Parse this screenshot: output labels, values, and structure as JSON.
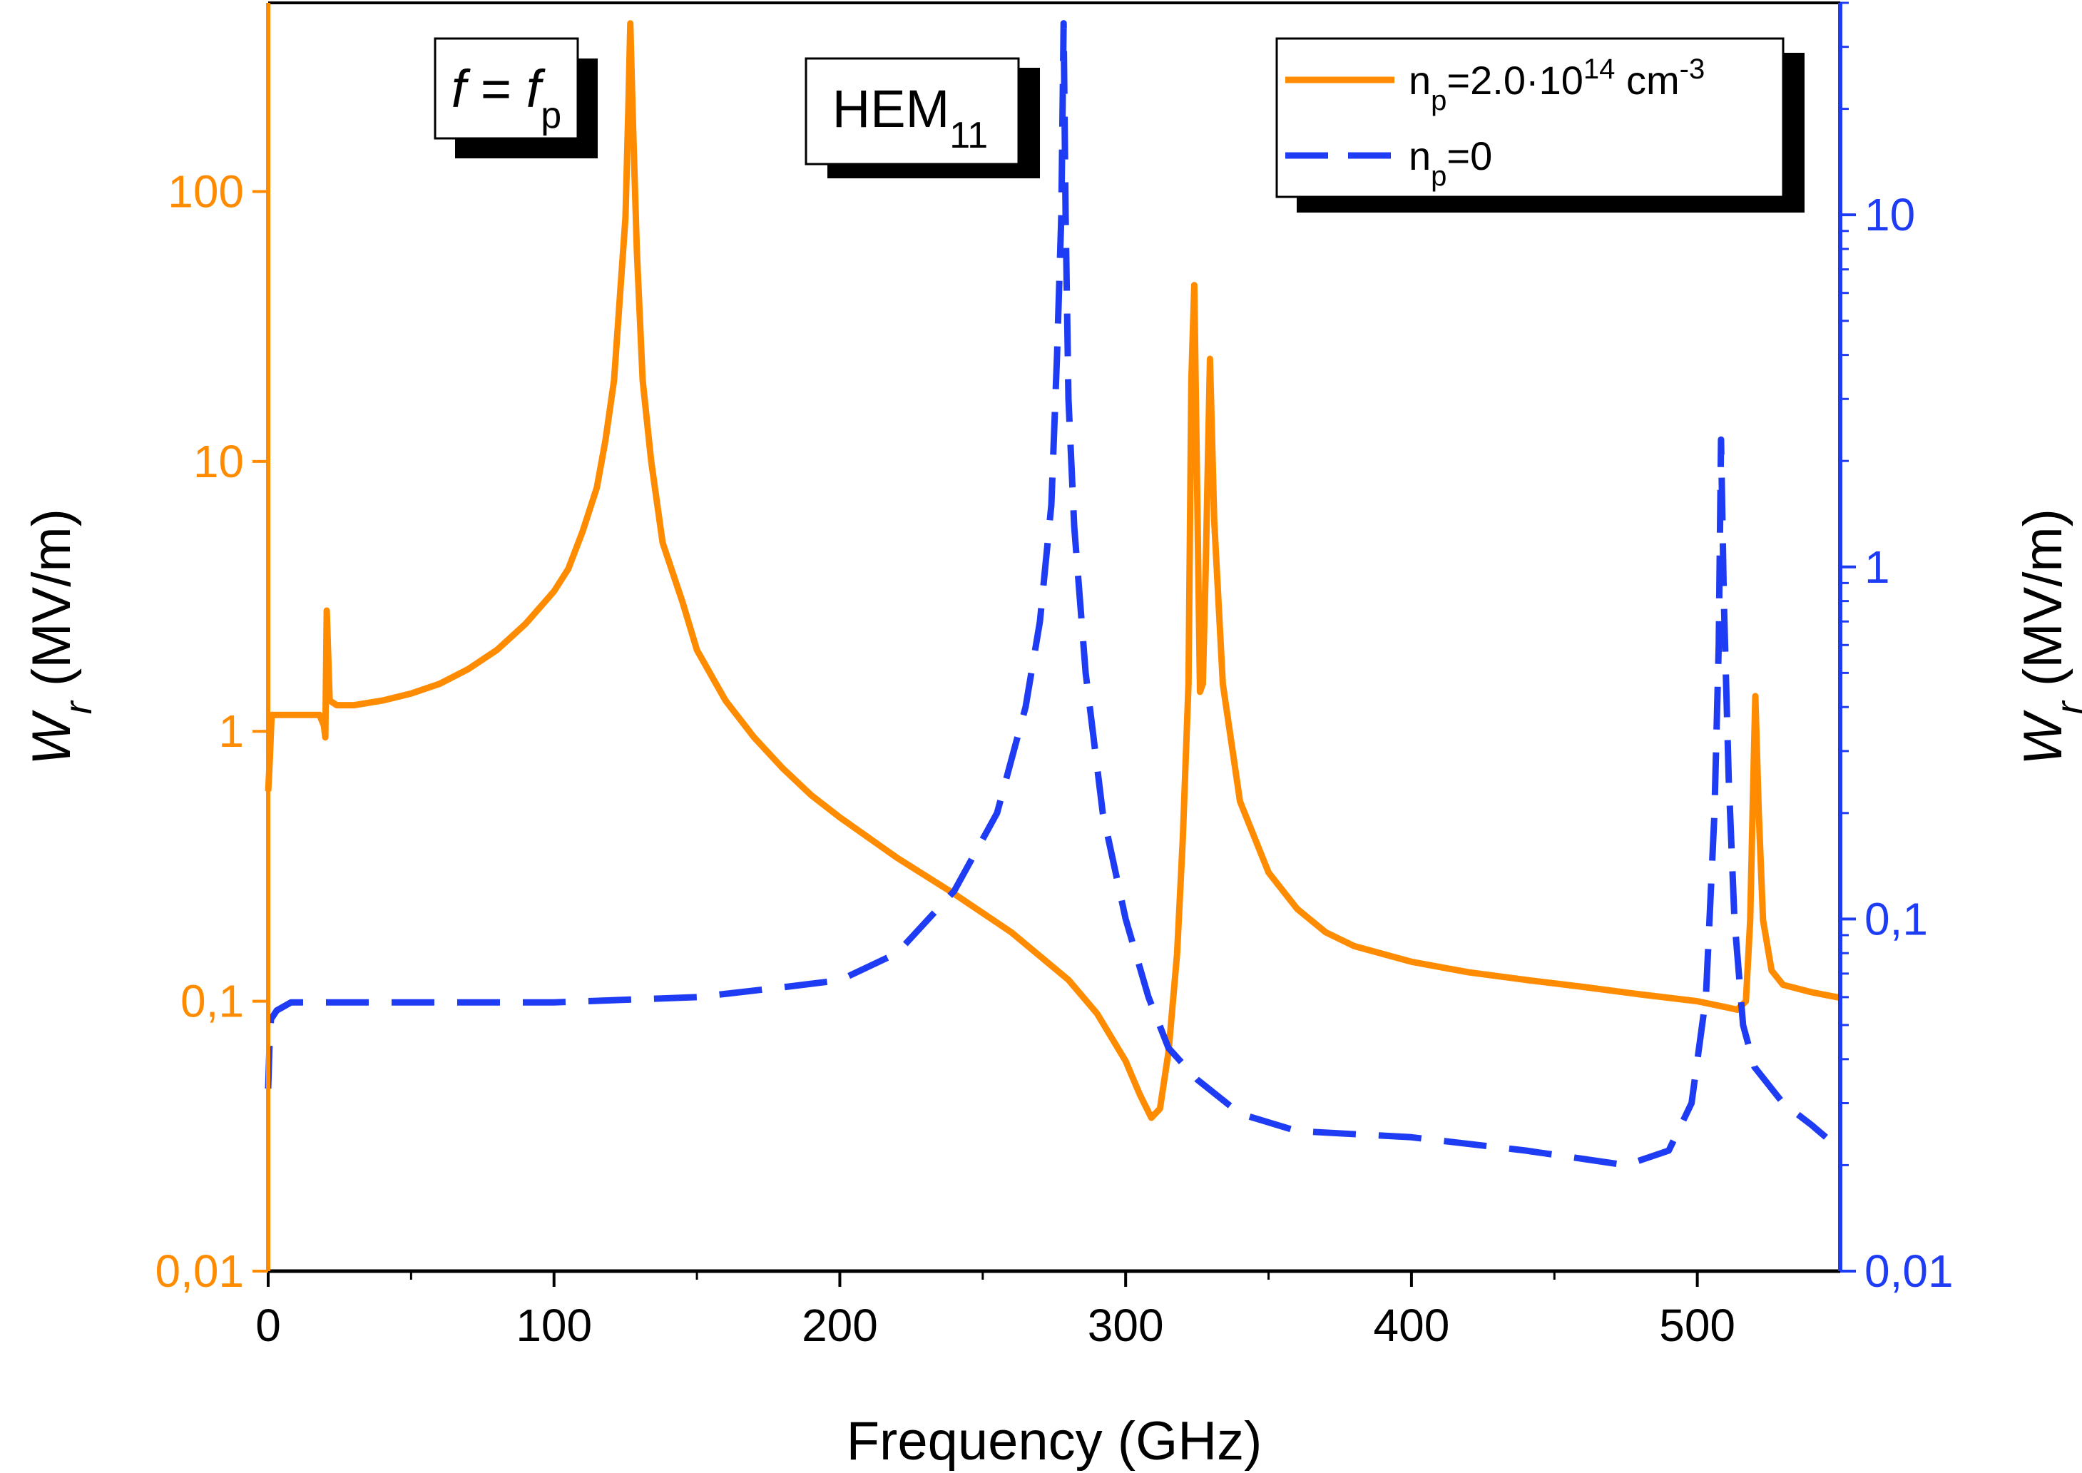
{
  "chart_data": {
    "type": "line",
    "xlabel": "Frequency (GHz)",
    "ylabel_left": {
      "main": "W",
      "sub": "r",
      "unit": " (MV/m)"
    },
    "ylabel_right": {
      "main": "W",
      "sub": "r",
      "unit": " (MV/m)"
    },
    "xlim": [
      0,
      550
    ],
    "ylim_left": [
      0.01,
      500
    ],
    "ylim_right": [
      0.01,
      40
    ],
    "yscale": "log",
    "x_ticks": [
      0,
      100,
      200,
      300,
      400,
      500
    ],
    "x_tick_labels": [
      "0",
      "100",
      "200",
      "300",
      "400",
      "500"
    ],
    "y_left_ticks": [
      0.01,
      0.1,
      1,
      10,
      100
    ],
    "y_left_tick_labels": [
      "0,01",
      "0,1",
      "1",
      "10",
      "100"
    ],
    "y_right_ticks": [
      0.01,
      0.1,
      1,
      10
    ],
    "y_right_tick_labels": [
      "0,01",
      "0,1",
      "1",
      "10"
    ],
    "colors": {
      "left_axis": "#ff8c00",
      "right_axis": "#1f3cf5",
      "orange_series": "#ff8c00",
      "blue_series": "#1f3cf5"
    },
    "annotations": [
      {
        "id": "f_fp",
        "text_parts": [
          "f",
          " = ",
          "f",
          "p"
        ],
        "near_x": 60
      },
      {
        "id": "hem11",
        "text_main": "HEM",
        "text_sub": "11",
        "near_x": 215
      }
    ],
    "legend": {
      "placement": "top-right",
      "entries": [
        {
          "series": "orange",
          "text_n": "n",
          "text_sub": "p",
          "text_eq": "=2.0·10",
          "text_sup": "14",
          "text_unit": " cm",
          "text_unit_sup": "-3"
        },
        {
          "series": "blue",
          "text_n": "n",
          "text_sub": "p",
          "text_eq": "=0"
        }
      ]
    },
    "series": [
      {
        "name": "np=2.0·10^14 cm^-3",
        "axis": "left",
        "style": "solid",
        "points": [
          [
            0,
            0.6
          ],
          [
            0.6,
            0.8
          ],
          [
            1.2,
            1.15
          ],
          [
            5,
            1.15
          ],
          [
            10,
            1.15
          ],
          [
            15,
            1.15
          ],
          [
            18,
            1.15
          ],
          [
            19.5,
            1.05
          ],
          [
            20,
            0.95
          ],
          [
            20.5,
            2.8
          ],
          [
            21.5,
            1.3
          ],
          [
            24,
            1.25
          ],
          [
            30,
            1.25
          ],
          [
            40,
            1.3
          ],
          [
            50,
            1.38
          ],
          [
            60,
            1.5
          ],
          [
            70,
            1.7
          ],
          [
            80,
            2.0
          ],
          [
            90,
            2.5
          ],
          [
            100,
            3.3
          ],
          [
            105,
            4.0
          ],
          [
            110,
            5.5
          ],
          [
            115,
            8.0
          ],
          [
            118,
            12
          ],
          [
            121,
            20
          ],
          [
            123,
            40
          ],
          [
            125,
            80
          ],
          [
            126,
            200
          ],
          [
            126.7,
            420
          ],
          [
            127.5,
            200
          ],
          [
            129,
            60
          ],
          [
            131,
            20
          ],
          [
            134,
            10
          ],
          [
            138,
            5
          ],
          [
            145,
            3.0
          ],
          [
            150,
            2.0
          ],
          [
            160,
            1.3
          ],
          [
            170,
            0.95
          ],
          [
            180,
            0.73
          ],
          [
            190,
            0.58
          ],
          [
            200,
            0.48
          ],
          [
            220,
            0.34
          ],
          [
            240,
            0.25
          ],
          [
            260,
            0.18
          ],
          [
            280,
            0.12
          ],
          [
            290,
            0.09
          ],
          [
            300,
            0.06
          ],
          [
            305,
            0.045
          ],
          [
            309,
            0.037
          ],
          [
            312,
            0.04
          ],
          [
            315,
            0.065
          ],
          [
            318,
            0.15
          ],
          [
            320,
            0.4
          ],
          [
            322,
            1.5
          ],
          [
            323,
            20
          ],
          [
            324,
            45
          ],
          [
            325,
            8
          ],
          [
            326,
            1.4
          ],
          [
            327,
            1.5
          ],
          [
            328,
            4
          ],
          [
            329.5,
            24
          ],
          [
            331,
            6
          ],
          [
            334,
            1.5
          ],
          [
            340,
            0.55
          ],
          [
            350,
            0.3
          ],
          [
            360,
            0.22
          ],
          [
            370,
            0.18
          ],
          [
            380,
            0.16
          ],
          [
            400,
            0.14
          ],
          [
            420,
            0.128
          ],
          [
            440,
            0.12
          ],
          [
            460,
            0.113
          ],
          [
            480,
            0.106
          ],
          [
            500,
            0.1
          ],
          [
            510,
            0.095
          ],
          [
            514,
            0.093
          ],
          [
            517,
            0.1
          ],
          [
            518.5,
            0.2
          ],
          [
            519.5,
            0.6
          ],
          [
            520.3,
            1.35
          ],
          [
            521.5,
            0.5
          ],
          [
            523,
            0.2
          ],
          [
            526,
            0.13
          ],
          [
            530,
            0.115
          ],
          [
            540,
            0.108
          ],
          [
            550,
            0.103
          ]
        ]
      },
      {
        "name": "np=0",
        "axis": "right",
        "style": "dashed",
        "points": [
          [
            0,
            0.033
          ],
          [
            0.5,
            0.045
          ],
          [
            1,
            0.052
          ],
          [
            3,
            0.055
          ],
          [
            8,
            0.058
          ],
          [
            50,
            0.058
          ],
          [
            100,
            0.058
          ],
          [
            150,
            0.06
          ],
          [
            180,
            0.064
          ],
          [
            200,
            0.067
          ],
          [
            220,
            0.08
          ],
          [
            240,
            0.12
          ],
          [
            255,
            0.2
          ],
          [
            265,
            0.4
          ],
          [
            270,
            0.7
          ],
          [
            274,
            1.5
          ],
          [
            276,
            4
          ],
          [
            277.5,
            10
          ],
          [
            278.3,
            35
          ],
          [
            279,
            10
          ],
          [
            280,
            3
          ],
          [
            282,
            1.3
          ],
          [
            286,
            0.5
          ],
          [
            292,
            0.2
          ],
          [
            300,
            0.1
          ],
          [
            308,
            0.06
          ],
          [
            315,
            0.043
          ],
          [
            325,
            0.035
          ],
          [
            340,
            0.028
          ],
          [
            360,
            0.025
          ],
          [
            400,
            0.024
          ],
          [
            440,
            0.022
          ],
          [
            475,
            0.02
          ],
          [
            490,
            0.022
          ],
          [
            498,
            0.03
          ],
          [
            503,
            0.06
          ],
          [
            506,
            0.2
          ],
          [
            507.5,
            0.6
          ],
          [
            508.3,
            2.3
          ],
          [
            509.3,
            0.8
          ],
          [
            511,
            0.25
          ],
          [
            513,
            0.1
          ],
          [
            516,
            0.05
          ],
          [
            520,
            0.038
          ],
          [
            530,
            0.03
          ],
          [
            540,
            0.026
          ],
          [
            545,
            0.024
          ]
        ]
      }
    ]
  }
}
